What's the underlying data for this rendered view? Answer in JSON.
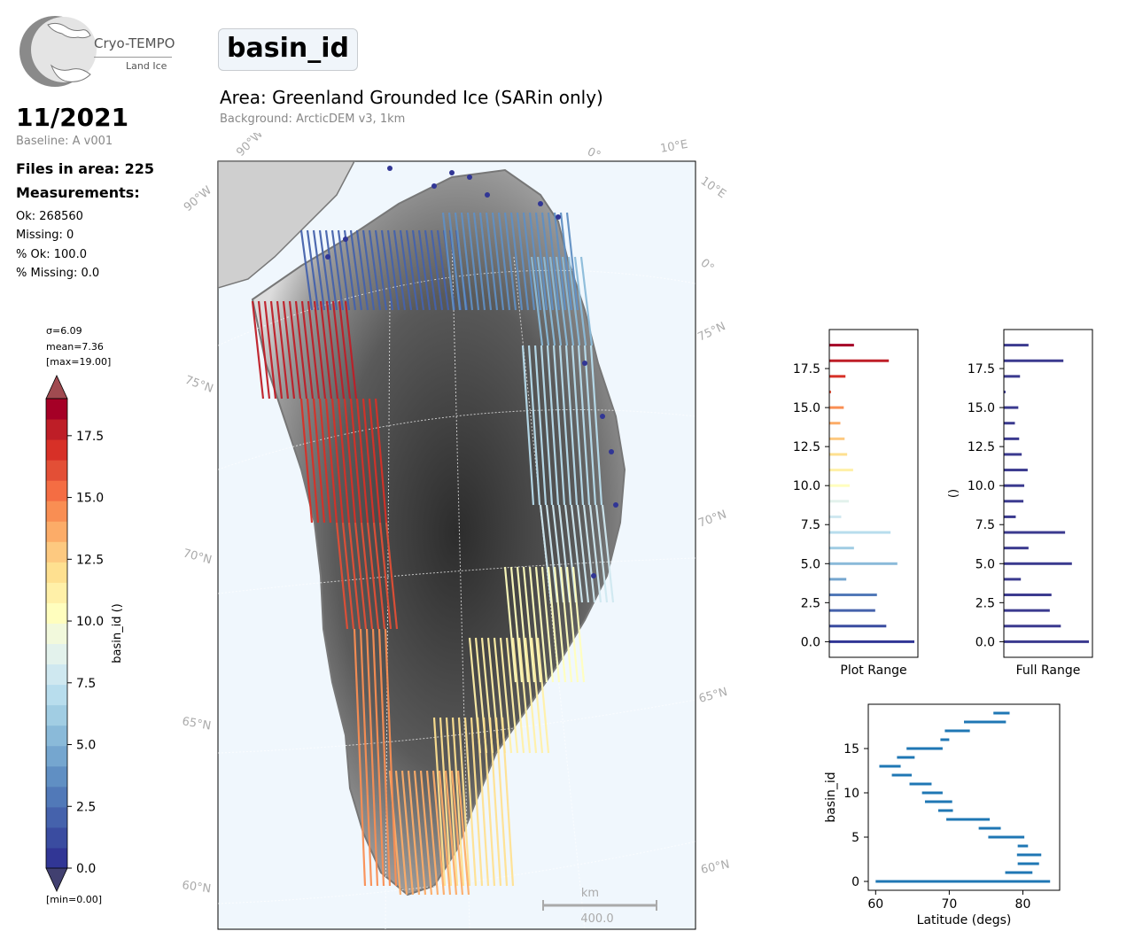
{
  "logo": {
    "title": "Cryo-TEMPO",
    "subtitle": "Land Ice"
  },
  "header": {
    "date": "11/2021",
    "baseline": "Baseline: A v001",
    "files": "Files in area: 225",
    "measurements_title": "Measurements:",
    "ok": "Ok: 268560",
    "missing": "Missing: 0",
    "pct_ok": "% Ok: 100.0",
    "pct_missing": "% Missing: 0.0"
  },
  "parameter_box": "basin_id",
  "area_title": "Area: Greenland Grounded Ice (SARin only)",
  "background_note": "Background: ArcticDEM v3, 1km",
  "colorbar": {
    "sigma": "σ=6.09",
    "mean": "mean=7.36",
    "max": "[max=19.00]",
    "min": "[min=0.00]",
    "label": "basin_id ()",
    "ticks": [
      "0.0",
      "2.5",
      "5.0",
      "7.5",
      "10.0",
      "12.5",
      "15.0",
      "17.5"
    ],
    "colors": [
      "#313695",
      "#3a4ca0",
      "#4562ac",
      "#5179b8",
      "#608fc3",
      "#75a6cf",
      "#8abad9",
      "#a1cde3",
      "#b8dded",
      "#cfe8f0",
      "#e3f2ec",
      "#f2f9dc",
      "#fffebe",
      "#fff0a8",
      "#fee090",
      "#fdc980",
      "#fcac68",
      "#f98e53",
      "#f46d43",
      "#e34f36",
      "#d73027",
      "#be1e27",
      "#a50026"
    ],
    "extend_color_max": "#a04a50",
    "extend_color_min": "#414070"
  },
  "map": {
    "lat_labels": [
      "75°N",
      "70°N",
      "65°N",
      "60°N",
      "75°N",
      "70°N",
      "65°N",
      "60°N"
    ],
    "lon_labels": [
      "90°W",
      "90°W",
      "0°",
      "10°E",
      "10°E",
      "0°"
    ],
    "scalebar_unit": "km",
    "scalebar_value": "400.0"
  },
  "chart_data": [
    {
      "type": "bar",
      "orientation": "horizontal",
      "title": "",
      "xlabel": "Plot Range",
      "ylabel": "",
      "ylim": [
        -1,
        20
      ],
      "yticks": [
        "0.0",
        "2.5",
        "5.0",
        "7.5",
        "10.0",
        "12.5",
        "15.0",
        "17.5"
      ],
      "categories": [
        0,
        1,
        2,
        3,
        4,
        5,
        6,
        7,
        8,
        9,
        10,
        11,
        12,
        13,
        14,
        15,
        16,
        17,
        18,
        19
      ],
      "values": [
        100,
        67,
        54,
        56,
        20,
        80,
        29,
        72,
        14,
        23,
        24,
        28,
        21,
        18,
        13,
        17,
        2,
        19,
        70,
        29
      ]
    },
    {
      "type": "bar",
      "orientation": "horizontal",
      "title": "",
      "xlabel": "Full Range",
      "ylabel": "()",
      "ylim": [
        -1,
        20
      ],
      "yticks": [
        "0.0",
        "2.5",
        "5.0",
        "7.5",
        "10.0",
        "12.5",
        "15.0",
        "17.5"
      ],
      "categories": [
        0,
        1,
        2,
        3,
        4,
        5,
        6,
        7,
        8,
        9,
        10,
        11,
        12,
        13,
        14,
        15,
        16,
        17,
        18,
        19
      ],
      "values": [
        100,
        67,
        54,
        56,
        20,
        80,
        29,
        72,
        14,
        23,
        24,
        28,
        21,
        18,
        13,
        17,
        2,
        19,
        70,
        29
      ],
      "bar_color": "#3b3a8f"
    },
    {
      "type": "range",
      "title": "",
      "xlabel": "Latitude (degs)",
      "ylabel": "basin_id",
      "xlim": [
        59,
        85
      ],
      "ylim": [
        -1,
        20
      ],
      "xticks": [
        "60",
        "70",
        "80"
      ],
      "yticks": [
        "0",
        "5",
        "10",
        "15"
      ],
      "series": [
        {
          "basin": 0,
          "lat_min": 60.0,
          "lat_max": 83.7
        },
        {
          "basin": 1,
          "lat_min": 77.6,
          "lat_max": 81.3
        },
        {
          "basin": 2,
          "lat_min": 79.3,
          "lat_max": 82.2
        },
        {
          "basin": 3,
          "lat_min": 79.2,
          "lat_max": 82.5
        },
        {
          "basin": 4,
          "lat_min": 79.3,
          "lat_max": 80.7
        },
        {
          "basin": 5,
          "lat_min": 75.3,
          "lat_max": 80.2
        },
        {
          "basin": 6,
          "lat_min": 74.0,
          "lat_max": 77.0
        },
        {
          "basin": 7,
          "lat_min": 69.6,
          "lat_max": 75.5
        },
        {
          "basin": 8,
          "lat_min": 68.5,
          "lat_max": 70.5
        },
        {
          "basin": 9,
          "lat_min": 66.7,
          "lat_max": 70.4
        },
        {
          "basin": 10,
          "lat_min": 66.3,
          "lat_max": 69.1
        },
        {
          "basin": 11,
          "lat_min": 64.6,
          "lat_max": 67.6
        },
        {
          "basin": 12,
          "lat_min": 62.2,
          "lat_max": 64.9
        },
        {
          "basin": 13,
          "lat_min": 60.5,
          "lat_max": 63.4
        },
        {
          "basin": 14,
          "lat_min": 62.9,
          "lat_max": 65.3
        },
        {
          "basin": 15,
          "lat_min": 64.2,
          "lat_max": 69.1
        },
        {
          "basin": 16,
          "lat_min": 68.8,
          "lat_max": 70.0
        },
        {
          "basin": 17,
          "lat_min": 69.4,
          "lat_max": 72.8
        },
        {
          "basin": 18,
          "lat_min": 72.0,
          "lat_max": 77.7
        },
        {
          "basin": 19,
          "lat_min": 76.0,
          "lat_max": 78.2
        }
      ],
      "color": "#1f77b4"
    }
  ]
}
